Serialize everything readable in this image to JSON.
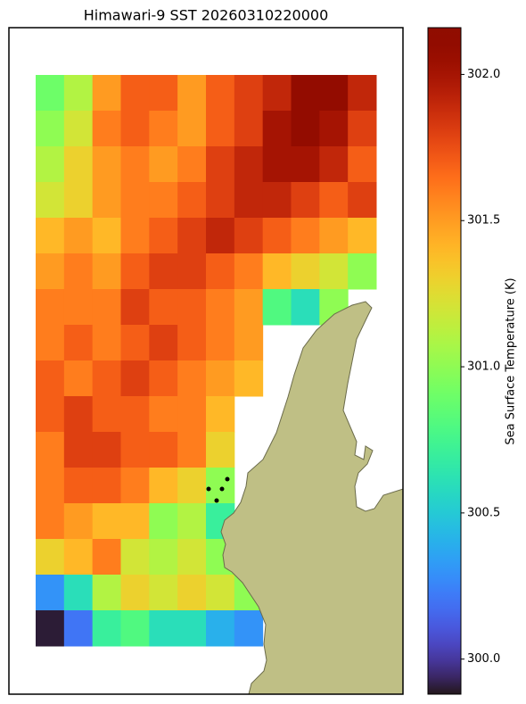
{
  "chart_data": {
    "type": "heatmap",
    "title": "Himawari-9 SST 20260310220000",
    "colormap": "turbo",
    "values": [
      [
        300.9,
        301.1,
        301.5,
        301.7,
        301.7,
        301.5,
        301.7,
        301.8,
        301.9,
        302.1,
        302.1,
        301.9
      ],
      [
        301.0,
        301.2,
        301.6,
        301.7,
        301.6,
        301.5,
        301.7,
        301.8,
        302.0,
        302.1,
        302.0,
        301.8
      ],
      [
        301.1,
        301.3,
        301.5,
        301.6,
        301.5,
        301.6,
        301.8,
        301.9,
        302.0,
        302.0,
        301.9,
        301.7
      ],
      [
        301.2,
        301.3,
        301.5,
        301.6,
        301.6,
        301.7,
        301.8,
        301.9,
        301.9,
        301.8,
        301.7,
        301.8
      ],
      [
        301.4,
        301.5,
        301.4,
        301.6,
        301.7,
        301.8,
        301.9,
        301.8,
        301.7,
        301.6,
        301.5,
        301.4
      ],
      [
        301.5,
        301.6,
        301.5,
        301.7,
        301.8,
        301.8,
        301.7,
        301.6,
        301.4,
        301.3,
        301.2,
        301.0
      ],
      [
        301.6,
        301.6,
        301.6,
        301.8,
        301.7,
        301.7,
        301.6,
        301.5,
        300.8,
        300.6,
        301.0,
        null
      ],
      [
        301.6,
        301.7,
        301.6,
        301.7,
        301.8,
        301.7,
        301.6,
        301.5,
        null,
        null,
        null,
        null
      ],
      [
        301.7,
        301.6,
        301.7,
        301.8,
        301.7,
        301.6,
        301.5,
        301.4,
        null,
        null,
        null,
        null
      ],
      [
        301.7,
        301.8,
        301.7,
        301.7,
        301.6,
        301.6,
        301.4,
        null,
        null,
        null,
        null,
        null
      ],
      [
        301.6,
        301.8,
        301.8,
        301.7,
        301.7,
        301.6,
        301.3,
        null,
        null,
        null,
        null,
        null
      ],
      [
        301.6,
        301.7,
        301.7,
        301.6,
        301.4,
        301.3,
        301.0,
        null,
        null,
        null,
        null,
        null
      ],
      [
        301.6,
        301.5,
        301.4,
        301.4,
        301.0,
        301.1,
        300.7,
        null,
        null,
        null,
        null,
        null
      ],
      [
        301.3,
        301.4,
        301.6,
        301.2,
        301.1,
        301.2,
        301.0,
        null,
        null,
        null,
        null,
        null
      ],
      [
        300.3,
        300.6,
        301.1,
        301.3,
        301.2,
        301.3,
        301.2,
        301.0,
        null,
        null,
        null,
        null
      ],
      [
        299.9,
        300.2,
        300.7,
        300.8,
        300.6,
        300.6,
        300.4,
        300.3,
        null,
        null,
        null,
        null
      ]
    ],
    "colorbar": {
      "label": "Sea Surface Temperature (K)",
      "lim": [
        299.88,
        302.16
      ],
      "ticks": [
        {
          "value": 300,
          "label": "300.0"
        },
        300.5,
        {
          "value": 301,
          "label": "301.0"
        },
        301.5,
        {
          "value": 302,
          "label": "302.0"
        }
      ]
    }
  }
}
